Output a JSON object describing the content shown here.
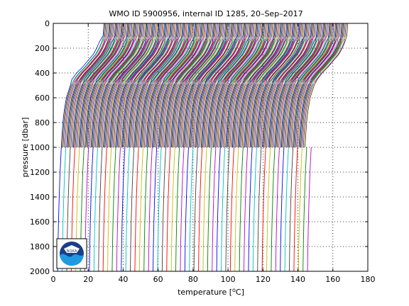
{
  "chart_data": {
    "type": "line",
    "title": "WMO ID 5900956, internal ID 1285, 20–Sep–2017",
    "xlabel_prefix": "temperature [",
    "xlabel_super": "o",
    "xlabel_suffix": "C]",
    "ylabel": "pressure [dbar]",
    "xlim": [
      0,
      180
    ],
    "ylim": [
      0,
      2000
    ],
    "y_reversed": true,
    "grid": true,
    "grid_style": "dotted",
    "xticks": [
      0,
      20,
      40,
      60,
      80,
      100,
      120,
      140,
      160,
      180
    ],
    "yticks": [
      0,
      200,
      400,
      600,
      800,
      1000,
      1200,
      1400,
      1600,
      1800,
      2000
    ],
    "series_colors": [
      "#0000ff",
      "#008000",
      "#ff0000",
      "#00bfbf",
      "#bf00bf",
      "#bfbf00",
      "#404040"
    ],
    "profile_offset_step": 0.5,
    "profile_count": 280,
    "profile_template": {
      "pressure": [
        0,
        50,
        100,
        150,
        200,
        250,
        300,
        350,
        400,
        450,
        500,
        600,
        700,
        800,
        900,
        1000
      ],
      "temperature": [
        29,
        28.8,
        28.5,
        27.5,
        26,
        24,
        21,
        18,
        14.5,
        11.8,
        9.8,
        7.5,
        6.3,
        5.5,
        5.0,
        4.6
      ]
    },
    "deep_profile_count": 56,
    "deep_profile_offset_step": 2.6,
    "deep_profile_template": {
      "pressure": [
        1000,
        1200,
        1400,
        1600,
        1800,
        2000
      ],
      "temperature": [
        4.6,
        3.9,
        3.4,
        3.0,
        2.7,
        2.5
      ]
    }
  },
  "logo": {
    "text": "NOAA",
    "primary_color": "#1a3e8c",
    "accent_color": "#1e9be0"
  }
}
